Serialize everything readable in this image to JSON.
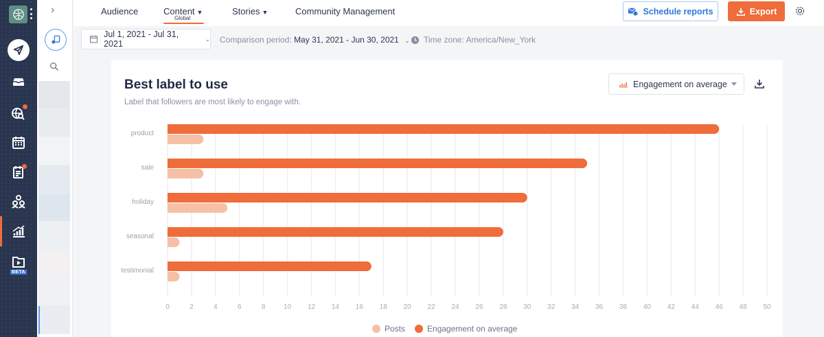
{
  "nav": {
    "items": [
      {
        "name": "compose",
        "icon": "paper-plane-icon"
      },
      {
        "name": "inbox",
        "icon": "inbox-tray-icon"
      },
      {
        "name": "listening",
        "icon": "globe-search-icon",
        "badge": true
      },
      {
        "name": "calendar",
        "icon": "calendar-icon"
      },
      {
        "name": "planner",
        "icon": "clipboard-icon",
        "badge": true
      },
      {
        "name": "team",
        "icon": "users-icon"
      },
      {
        "name": "analytics",
        "icon": "bar-chart-icon",
        "active": true
      },
      {
        "name": "video",
        "icon": "video-folder-icon"
      }
    ],
    "beta_label": "BETA",
    "accent": "#ef6c3b"
  },
  "topnav": {
    "tabs": [
      {
        "label": "Audience"
      },
      {
        "label": "Content",
        "sub": "Global",
        "active": true
      },
      {
        "label": "Stories"
      },
      {
        "label": "Community Management"
      }
    ],
    "schedule_label": "Schedule reports",
    "export_label": "Export"
  },
  "filters": {
    "date_range": "Jul 1, 2021 - Jul 31, 2021",
    "comparison_label": "Comparison period:",
    "comparison_value": "May 31, 2021 - Jun 30, 2021",
    "timezone": "Time zone: America/New_York"
  },
  "card": {
    "title": "Best label to use",
    "subtitle": "Label that followers are most likely to engage with.",
    "metric_select": "Engagement on average"
  },
  "chart_data": {
    "type": "bar",
    "orientation": "horizontal",
    "categories": [
      "product",
      "sale",
      "holiday",
      "seasonal",
      "testimonial"
    ],
    "series": [
      {
        "name": "Engagement on average",
        "color": "#ef6c3b",
        "values": [
          46,
          35,
          30,
          28,
          17
        ]
      },
      {
        "name": "Posts",
        "color": "#f6c0a6",
        "values": [
          3,
          3,
          5,
          1,
          1
        ]
      }
    ],
    "xlim": [
      0,
      50
    ],
    "xticks": [
      0,
      2,
      4,
      6,
      8,
      10,
      12,
      14,
      16,
      18,
      20,
      22,
      24,
      26,
      28,
      30,
      32,
      34,
      36,
      38,
      40,
      42,
      44,
      46,
      48,
      50
    ],
    "grid": true,
    "legend": [
      {
        "label": "Posts",
        "color": "#f6c0a6"
      },
      {
        "label": "Engagement on average",
        "color": "#ef6c3b"
      }
    ],
    "legend_position": "bottom"
  }
}
